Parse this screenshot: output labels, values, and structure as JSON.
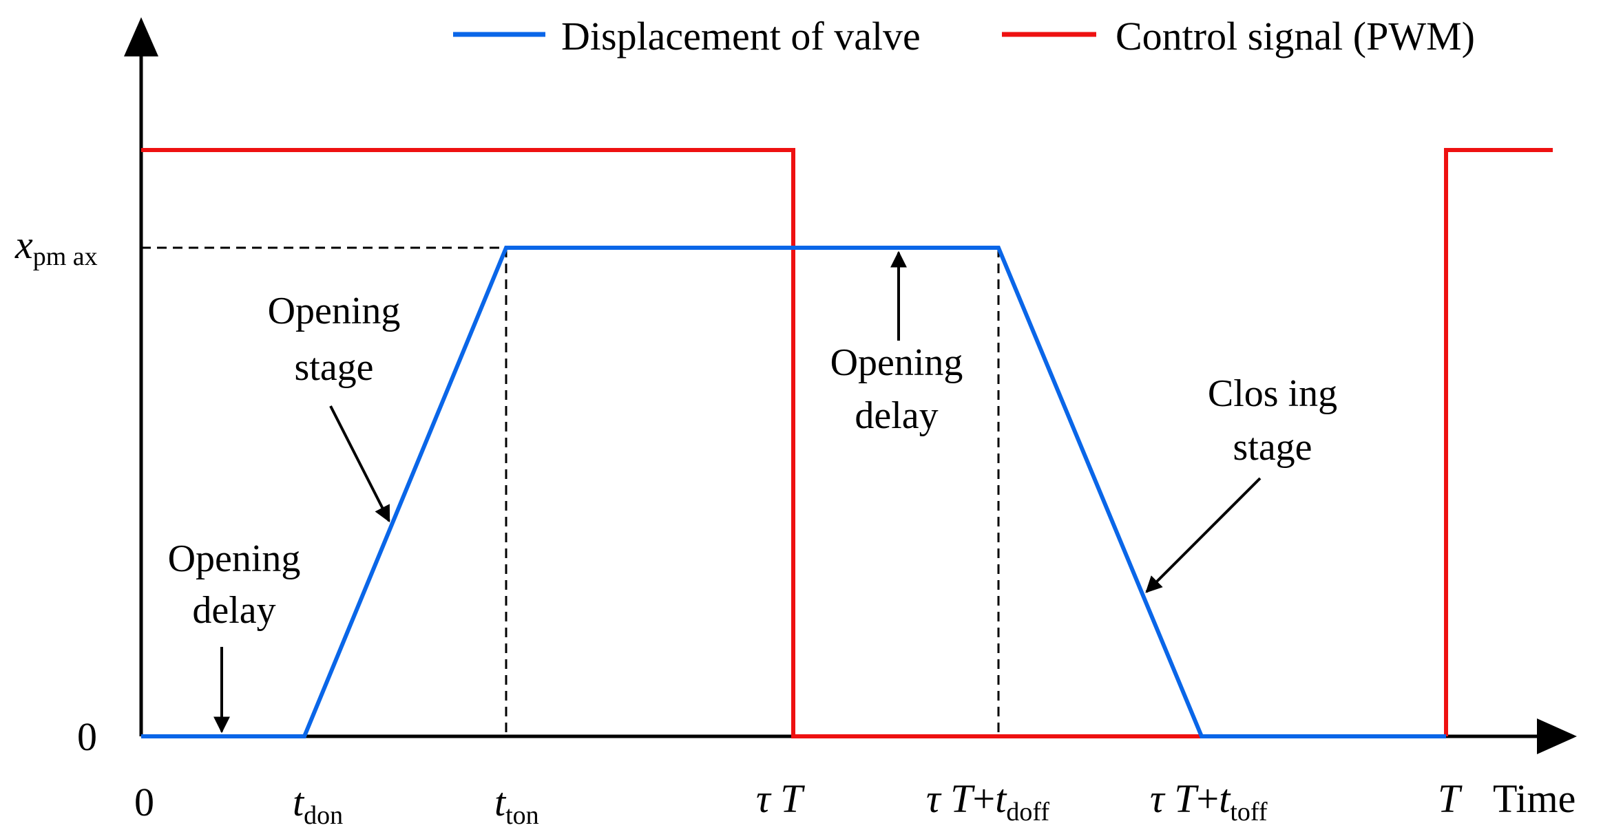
{
  "legend": {
    "valve": {
      "label": "Displacement of valve",
      "color": "#0A66E8"
    },
    "pwm": {
      "label": "Control signal (PWM)",
      "color": "#EE1111"
    }
  },
  "axes": {
    "y_max_label_main": "x",
    "y_max_label_sub": "pm ax",
    "y_zero_label": "0",
    "x_zero_label": "0",
    "x_title": "Time"
  },
  "x_ticks": {
    "t_don": {
      "main": "t",
      "sub": "don"
    },
    "t_ton": {
      "main": "t",
      "sub": "ton"
    },
    "tau_T": {
      "main": "τ T"
    },
    "tau_T_doff": {
      "main": "τ T",
      "plus": "+",
      "t": "t",
      "sub": "doff"
    },
    "tau_T_toff": {
      "main": "τ T",
      "plus": "+",
      "t": "t",
      "sub": "toff"
    },
    "T": {
      "main": "T"
    }
  },
  "annotations": {
    "opening_delay_left": [
      "Opening",
      "delay"
    ],
    "opening_stage": [
      "Opening",
      "stage"
    ],
    "opening_delay_right": [
      "Opening",
      "delay"
    ],
    "closing_stage": [
      "Clos ing",
      "stage"
    ]
  }
}
